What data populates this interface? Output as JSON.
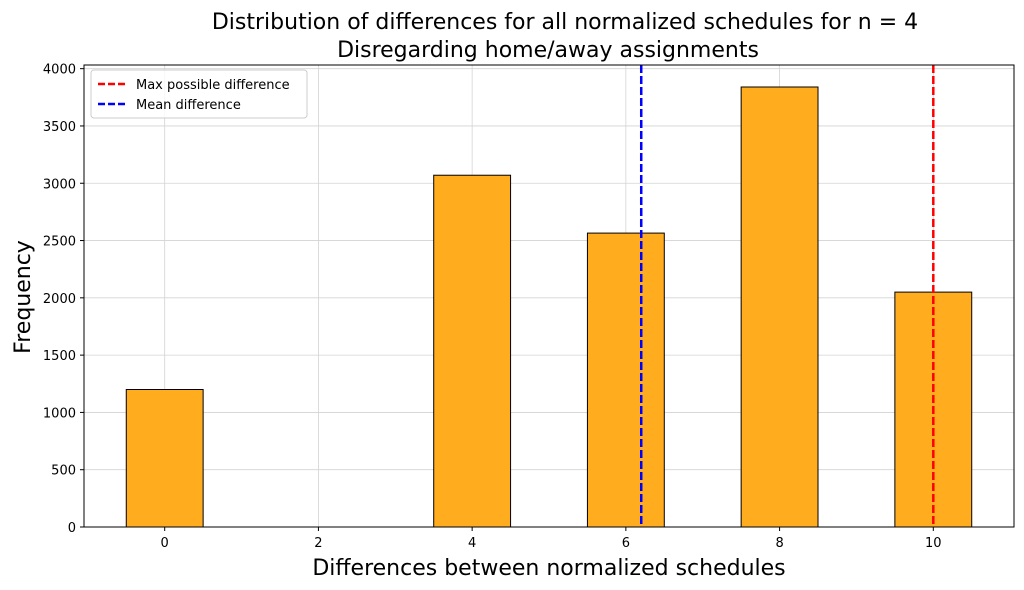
{
  "chart_data": {
    "type": "bar",
    "title": "Distribution of differences for all normalized schedules for n = 4",
    "subtitle": "Disregarding home/away assignments",
    "xlabel": "Differences between normalized schedules",
    "ylabel": "Frequency",
    "x": [
      0,
      4,
      6,
      8,
      10
    ],
    "values": [
      1200,
      3070,
      2565,
      3840,
      2050
    ],
    "bar_width": 1,
    "xlim": [
      -1.05,
      11.05
    ],
    "ylim": [
      0,
      4032
    ],
    "xticks": [
      0,
      2,
      4,
      6,
      8,
      10
    ],
    "yticks": [
      0,
      500,
      1000,
      1500,
      2000,
      2500,
      3000,
      3500,
      4000
    ],
    "grid": true,
    "bar_color": "#ffad1f",
    "vlines": [
      {
        "name": "Max possible difference",
        "x": 10,
        "color": "#ff0000"
      },
      {
        "name": "Mean difference",
        "x": 6.2,
        "color": "#0000ff"
      }
    ],
    "legend_position": "upper-left"
  }
}
